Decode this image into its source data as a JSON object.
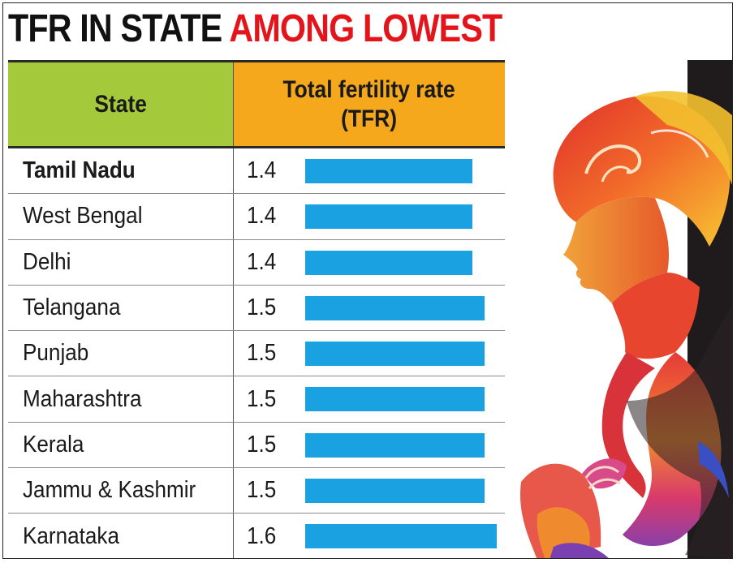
{
  "title": {
    "part1": "TFR IN STATE",
    "part2": "AMONG LOWEST"
  },
  "table": {
    "headers": {
      "state": "State",
      "tfr": "Total fertility rate\n(TFR)"
    }
  },
  "colors": {
    "title_dark": "#111111",
    "title_red": "#e4141b",
    "state_header": "#a4c93a",
    "tfr_header": "#f5a81c",
    "bar": "#1aa1e1"
  },
  "chart_data": {
    "type": "bar",
    "orientation": "horizontal",
    "title": "TFR IN STATE AMONG LOWEST",
    "categories": [
      "Tamil Nadu",
      "West Bengal",
      "Delhi",
      "Telangana",
      "Punjab",
      "Maharashtra",
      "Kerala",
      "Jammu & Kashmir",
      "Karnataka"
    ],
    "values": [
      1.4,
      1.4,
      1.4,
      1.5,
      1.5,
      1.5,
      1.5,
      1.5,
      1.6
    ],
    "value_labels": [
      "1.4",
      "1.4",
      "1.4",
      "1.5",
      "1.5",
      "1.5",
      "1.5",
      "1.5",
      "1.6"
    ],
    "highlight": "Tamil Nadu",
    "xlabel": "",
    "ylabel": "",
    "grid": false,
    "legend": "none"
  }
}
